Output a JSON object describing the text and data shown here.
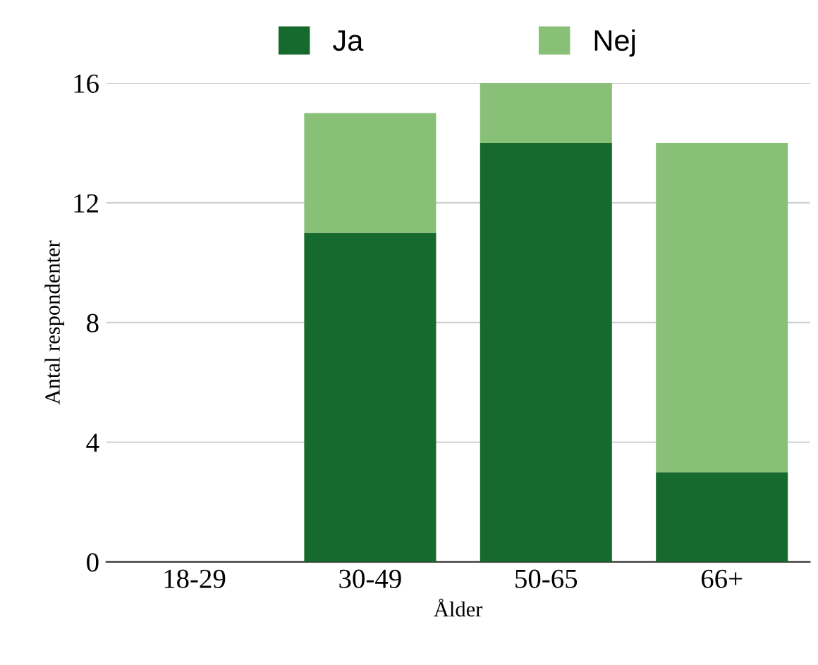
{
  "chart_data": {
    "type": "bar",
    "xlabel": "Ålder",
    "ylabel": "Antal respondenter",
    "categories": [
      "18-29",
      "30-49",
      "50-65",
      "66+"
    ],
    "series": [
      {
        "name": "Ja",
        "color": "#176a2d",
        "values": [
          0,
          11,
          14,
          3
        ]
      },
      {
        "name": "Nej",
        "color": "#88c077",
        "values": [
          0,
          4,
          2,
          11
        ]
      }
    ],
    "stacked": true,
    "ylim": [
      0,
      16
    ],
    "yticks": [
      0,
      4,
      8,
      12,
      16
    ],
    "grid": "y",
    "legend": "top"
  }
}
